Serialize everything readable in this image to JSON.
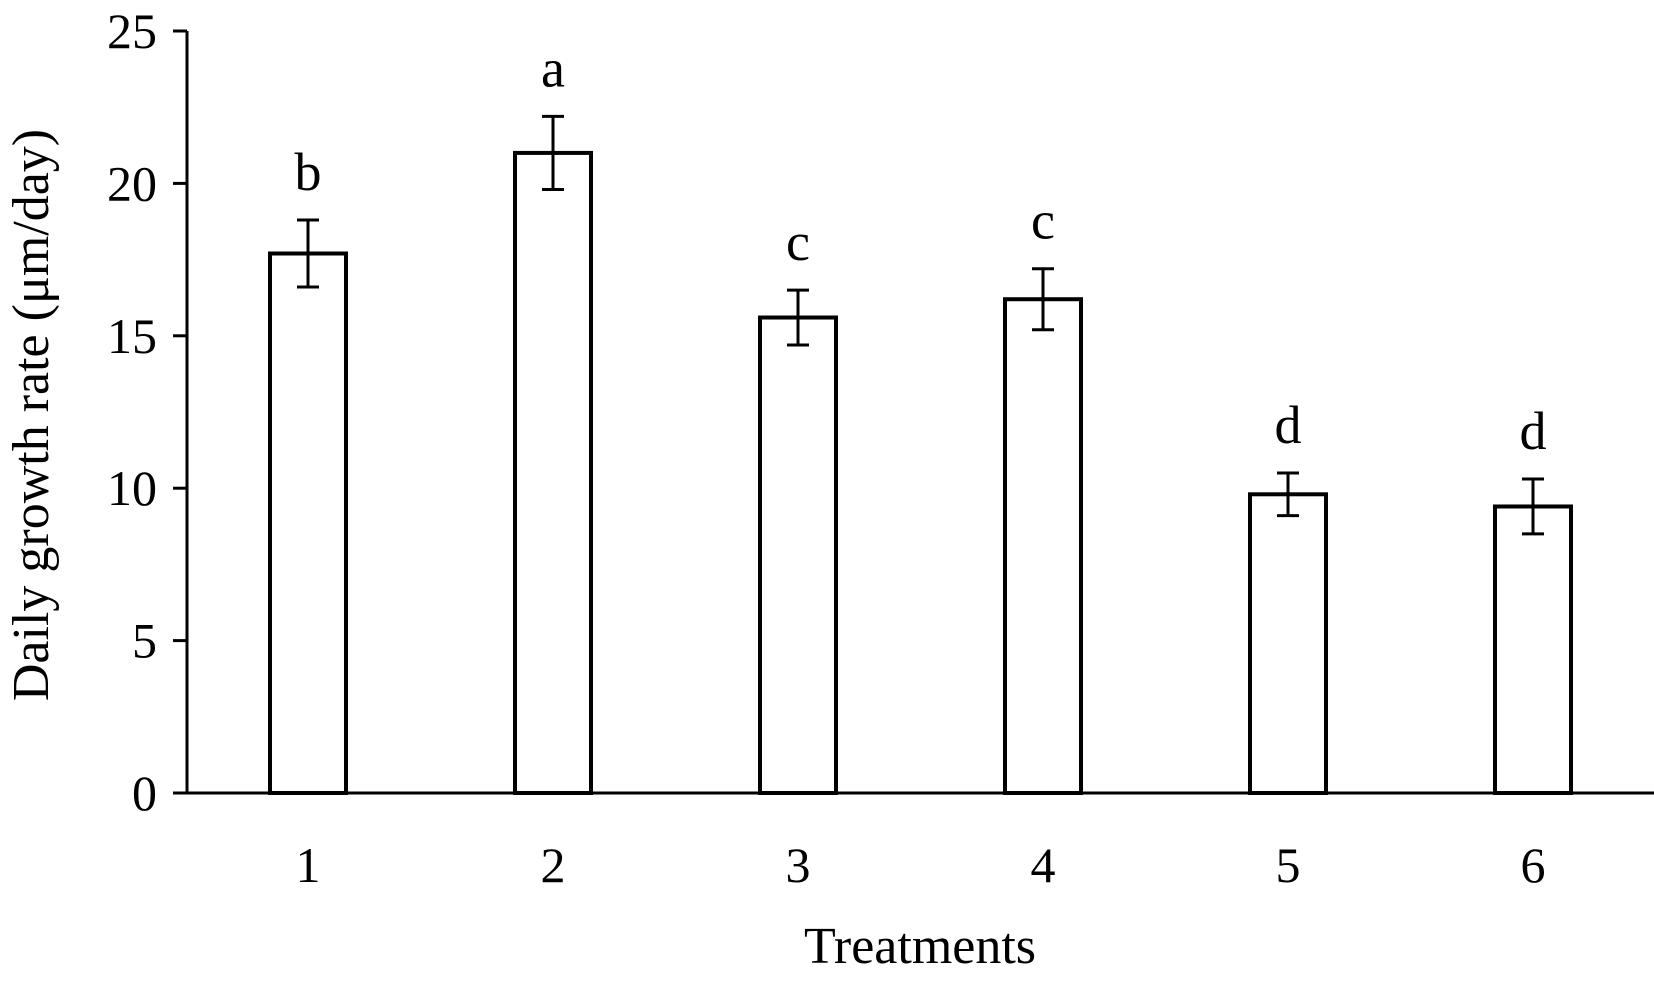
{
  "chart_data": {
    "type": "bar",
    "categories": [
      "1",
      "2",
      "3",
      "4",
      "5",
      "6"
    ],
    "values": [
      17.7,
      21.0,
      15.6,
      16.2,
      9.8,
      9.4
    ],
    "errors": [
      1.1,
      1.2,
      0.9,
      1.0,
      0.7,
      0.9
    ],
    "significance": [
      "b",
      "a",
      "c",
      "c",
      "d",
      "d"
    ],
    "xlabel": "Treatments",
    "ylabel": "Daily growth rate (μm/day)",
    "ylim": [
      0,
      25
    ],
    "yticks": [
      0,
      5,
      10,
      15,
      20,
      25
    ],
    "grid": false,
    "bar_fill": "#ffffff",
    "stroke_color": "#000000"
  }
}
